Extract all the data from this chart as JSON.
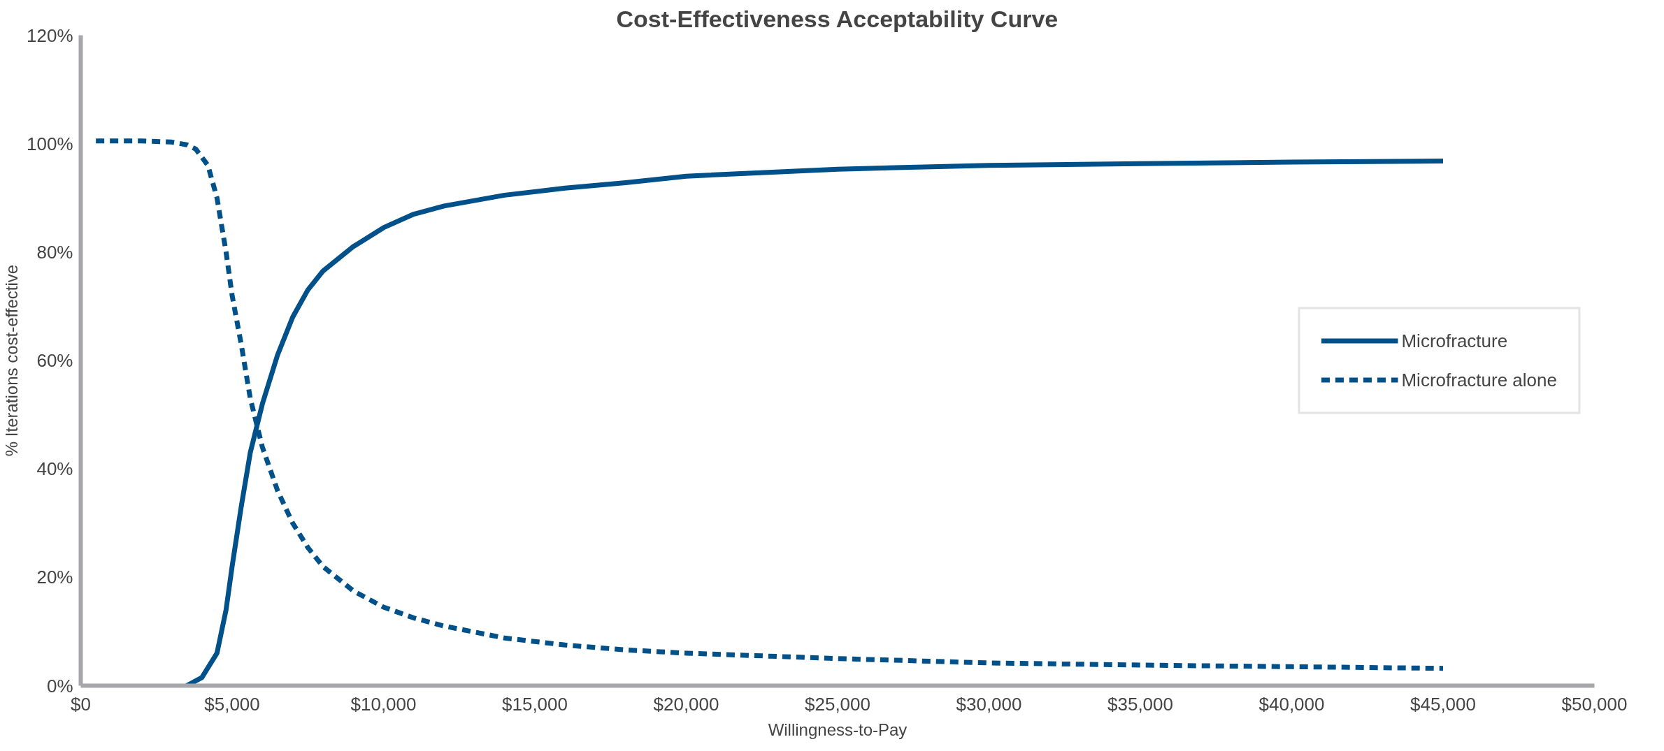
{
  "chart_data": {
    "type": "line",
    "title": "Cost-Effectiveness Acceptability Curve",
    "xlabel": "Willingness-to-Pay",
    "ylabel": "% Iterations cost-effective",
    "xlim": [
      0,
      50000
    ],
    "ylim": [
      0,
      120
    ],
    "xticks": [
      {
        "value": 0,
        "label": "$0"
      },
      {
        "value": 5000,
        "label": "$5,000"
      },
      {
        "value": 10000,
        "label": "$10,000"
      },
      {
        "value": 15000,
        "label": "$15,000"
      },
      {
        "value": 20000,
        "label": "$20,000"
      },
      {
        "value": 25000,
        "label": "$25,000"
      },
      {
        "value": 30000,
        "label": "$30,000"
      },
      {
        "value": 35000,
        "label": "$35,000"
      },
      {
        "value": 40000,
        "label": "$40,000"
      },
      {
        "value": 45000,
        "label": "$45,000"
      },
      {
        "value": 50000,
        "label": "$50,000"
      }
    ],
    "yticks": [
      {
        "value": 0,
        "label": "0%"
      },
      {
        "value": 20,
        "label": "20%"
      },
      {
        "value": 40,
        "label": "40%"
      },
      {
        "value": 60,
        "label": "60%"
      },
      {
        "value": 80,
        "label": "80%"
      },
      {
        "value": 100,
        "label": "100%"
      },
      {
        "value": 120,
        "label": "120%"
      }
    ],
    "grid": false,
    "legend": "right",
    "marker": "none",
    "series": [
      {
        "name": "Microfracture",
        "color": "#00508a",
        "line_style": "solid",
        "x": [
          3500,
          4000,
          4500,
          4800,
          5000,
          5300,
          5600,
          6000,
          6500,
          7000,
          7500,
          8000,
          9000,
          10000,
          11000,
          12000,
          14000,
          16000,
          18000,
          20000,
          25000,
          30000,
          35000,
          40000,
          45000
        ],
        "values": [
          0,
          1.5,
          6,
          14,
          22,
          33,
          43,
          52,
          61,
          68,
          73,
          76.5,
          81,
          84.5,
          87,
          88.5,
          90.5,
          91.8,
          92.8,
          94,
          95.3,
          96,
          96.3,
          96.6,
          96.8
        ]
      },
      {
        "name": "Microfracture alone",
        "color": "#00508a",
        "line_style": "dashed",
        "x": [
          500,
          1000,
          2000,
          3000,
          3500,
          3800,
          4200,
          4500,
          4800,
          5000,
          5300,
          5600,
          6000,
          6500,
          7000,
          7500,
          8000,
          9000,
          10000,
          11000,
          12000,
          14000,
          16000,
          18000,
          20000,
          25000,
          30000,
          35000,
          40000,
          45000
        ],
        "values": [
          100.5,
          100.5,
          100.5,
          100.3,
          99.8,
          99,
          96,
          90,
          80,
          72,
          63,
          53,
          44,
          36,
          30,
          25.5,
          22,
          17.5,
          14.5,
          12.5,
          11,
          8.8,
          7.5,
          6.6,
          6,
          5,
          4.2,
          3.8,
          3.5,
          3.2
        ]
      }
    ]
  }
}
